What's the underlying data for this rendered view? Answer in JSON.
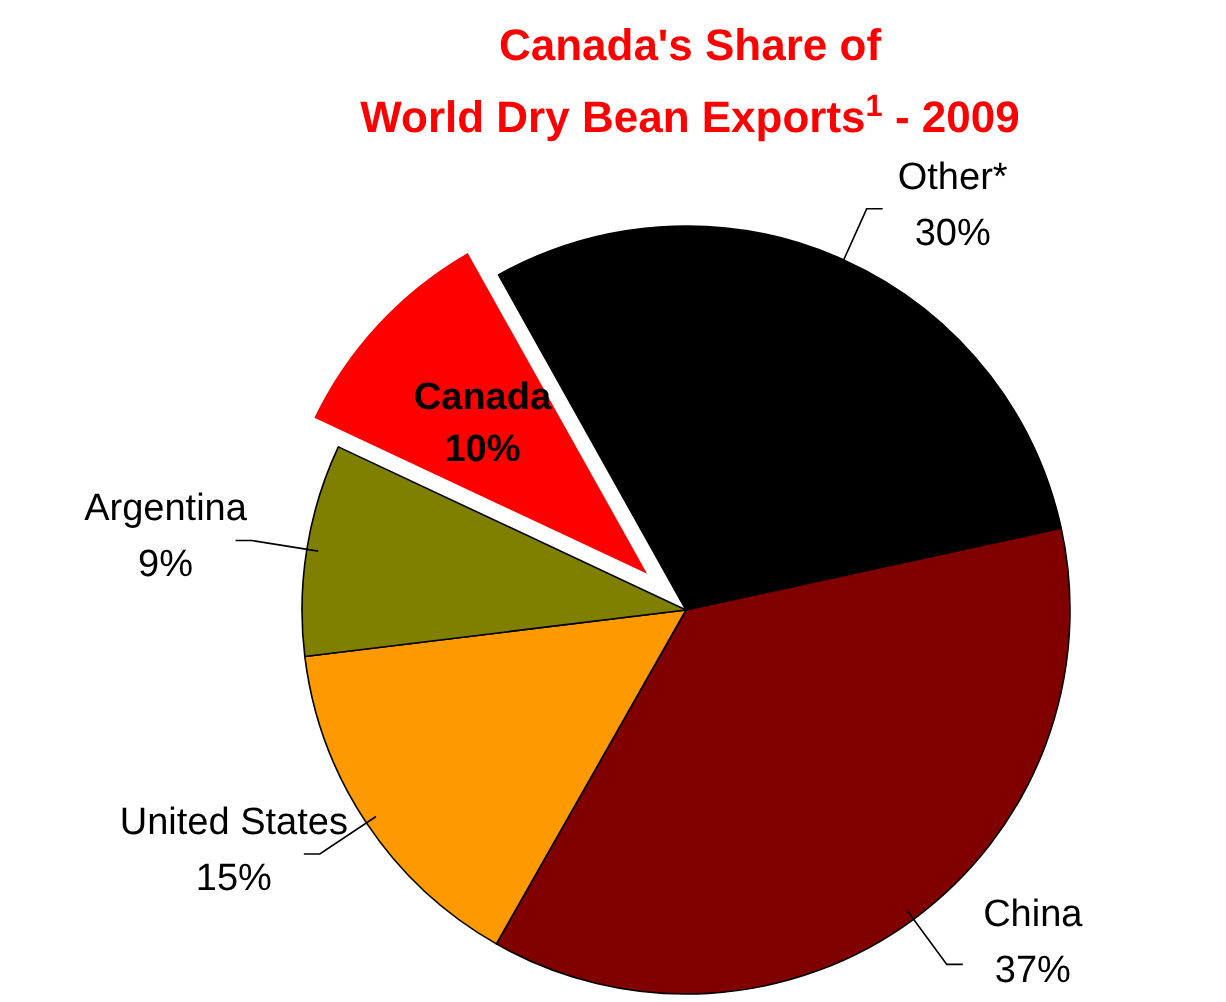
{
  "chart_data": {
    "type": "pie",
    "title": "Canada's Share of\nWorld Dry Bean Exports$^{1}$ - 2009",
    "categories": [
      "Other*",
      "China",
      "United States",
      "Argentina",
      "Canada"
    ],
    "values": [
      30,
      37,
      15,
      9,
      10
    ],
    "colors": [
      "#000000",
      "#800000",
      "#ff9900",
      "#808000",
      "#ff0000"
    ],
    "value_labels": [
      "30%",
      "37%",
      "15%",
      "9%",
      "10%"
    ]
  }
}
